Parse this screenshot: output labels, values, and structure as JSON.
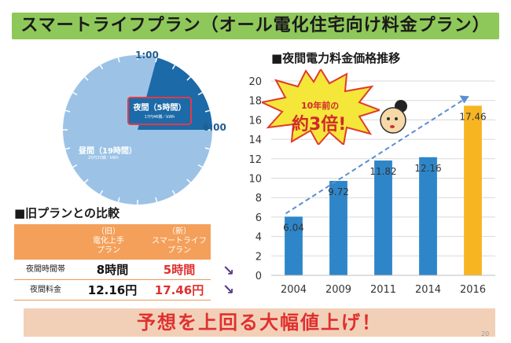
{
  "title": "スマートライフプラン（オール電化住宅向け料金プラン）",
  "pie": {
    "clock_top": "1:00",
    "clock_right": "6:00",
    "night_label": "夜間（5時間）",
    "night_sub": "17円46銭／kWh",
    "day_label": "昼間（19時間）",
    "day_sub": "25円33銭／kWh",
    "night_hours": 5,
    "day_hours": 19,
    "colors": {
      "night": "#1c6aa8",
      "day": "#9cc3e6"
    }
  },
  "comparison": {
    "heading": "■旧プランとの比較",
    "col_old": "（旧）\n電化上手\nプラン",
    "col_new": "（新）\nスマートライフ\nプラン",
    "rows": [
      {
        "label": "夜間時間帯",
        "old": "8時間",
        "new": "5時間"
      },
      {
        "label": "夜間料金",
        "old": "12.16円",
        "new": "17.46円"
      }
    ],
    "arrow": "↘"
  },
  "chart_heading": "■夜間電力料金価格推移",
  "callout": {
    "line1": "10年前の",
    "line2": "約3倍!"
  },
  "banner": "予想を上回る大幅値上げ！",
  "page_number": "20",
  "chart_data": {
    "type": "bar",
    "categories": [
      "2004",
      "2009",
      "2011",
      "2014",
      "2016"
    ],
    "values": [
      6.04,
      9.72,
      11.82,
      12.16,
      17.46
    ],
    "value_labels": [
      "6.04",
      "9.72",
      "11.82",
      "12.16",
      "17.46"
    ],
    "ylim": [
      0,
      20
    ],
    "yticks": [
      "0",
      "2",
      "4",
      "6",
      "8",
      "10",
      "12",
      "14",
      "16",
      "18",
      "20"
    ],
    "grid": true,
    "trend": "dashed arrow from first to last bar",
    "colors": {
      "bar": "#2e86c9",
      "highlight": "#f7b521",
      "trend": "#5b8fd0"
    }
  }
}
